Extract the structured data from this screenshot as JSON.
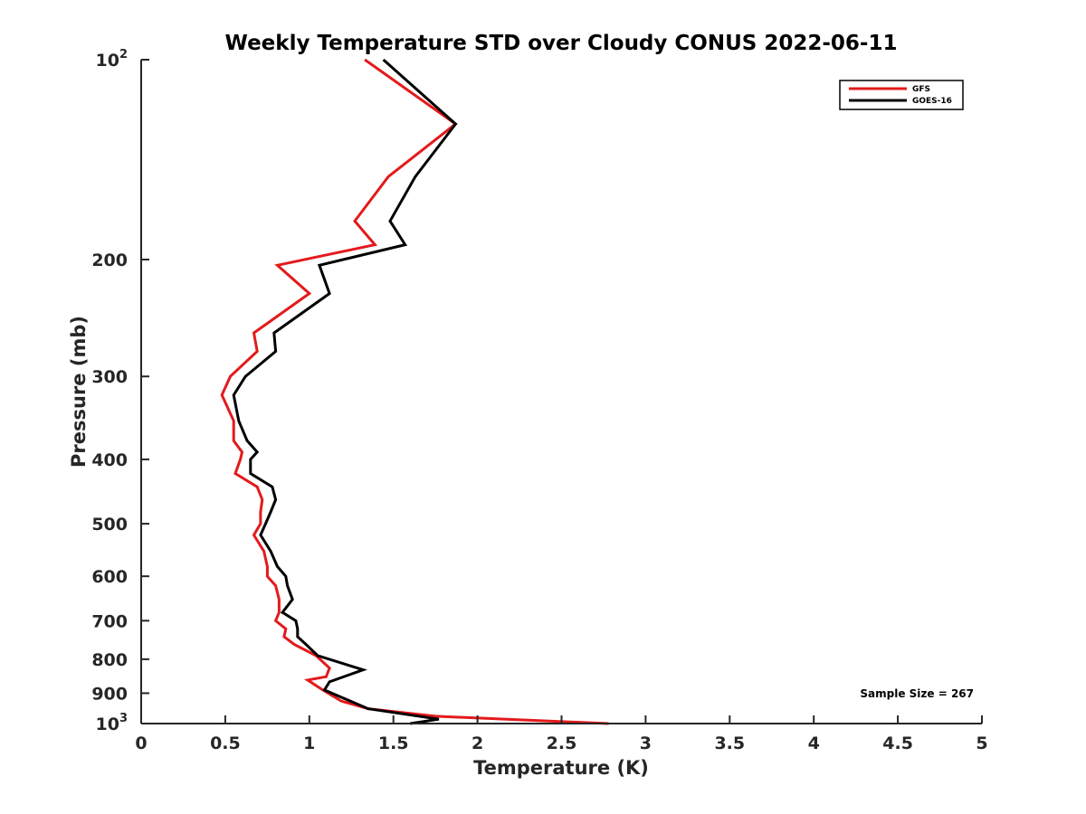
{
  "chart_data": {
    "type": "line",
    "title": "Weekly Temperature STD over Cloudy CONUS 2022-06-11",
    "xlabel": "Temperature (K)",
    "ylabel": "Pressure (mb)",
    "xlim": [
      0,
      5
    ],
    "ylim": [
      100,
      1000
    ],
    "yscale": "log",
    "y_reversed": true,
    "grid": false,
    "legend_position": "top-right",
    "x_ticks": [
      "0",
      "0.5",
      "1",
      "1.5",
      "2",
      "2.5",
      "3",
      "3.5",
      "4",
      "4.5",
      "5"
    ],
    "y_ticks": [
      {
        "value": 100,
        "base": "10",
        "exp": "2"
      },
      {
        "value": 200,
        "text": "200"
      },
      {
        "value": 300,
        "text": "300"
      },
      {
        "value": 400,
        "text": "400"
      },
      {
        "value": 500,
        "text": "500"
      },
      {
        "value": 600,
        "text": "600"
      },
      {
        "value": 700,
        "text": "700"
      },
      {
        "value": 800,
        "text": "800"
      },
      {
        "value": 900,
        "text": "900"
      },
      {
        "value": 1000,
        "base": "10",
        "exp": "3"
      }
    ],
    "annotation": "Sample Size = 267",
    "series": [
      {
        "name": "GFS",
        "color": "#e31a1c",
        "points": [
          [
            1.33,
            100
          ],
          [
            1.87,
            125
          ],
          [
            1.47,
            150
          ],
          [
            1.27,
            175
          ],
          [
            1.39,
            190
          ],
          [
            0.81,
            204
          ],
          [
            1.0,
            225
          ],
          [
            0.67,
            258
          ],
          [
            0.69,
            275
          ],
          [
            0.53,
            300
          ],
          [
            0.48,
            320
          ],
          [
            0.55,
            350
          ],
          [
            0.55,
            375
          ],
          [
            0.6,
            390
          ],
          [
            0.59,
            400
          ],
          [
            0.56,
            420
          ],
          [
            0.69,
            440
          ],
          [
            0.72,
            460
          ],
          [
            0.71,
            480
          ],
          [
            0.71,
            500
          ],
          [
            0.67,
            520
          ],
          [
            0.73,
            550
          ],
          [
            0.75,
            580
          ],
          [
            0.75,
            600
          ],
          [
            0.8,
            620
          ],
          [
            0.82,
            650
          ],
          [
            0.82,
            680
          ],
          [
            0.8,
            700
          ],
          [
            0.86,
            720
          ],
          [
            0.85,
            740
          ],
          [
            0.91,
            760
          ],
          [
            1.04,
            790
          ],
          [
            1.12,
            825
          ],
          [
            1.1,
            850
          ],
          [
            0.99,
            860
          ],
          [
            1.08,
            890
          ],
          [
            1.19,
            925
          ],
          [
            1.35,
            950
          ],
          [
            1.75,
            975
          ],
          [
            2.78,
            1000
          ]
        ]
      },
      {
        "name": "GOES-16",
        "color": "#000000",
        "points": [
          [
            1.44,
            100
          ],
          [
            1.87,
            125
          ],
          [
            1.63,
            150
          ],
          [
            1.48,
            175
          ],
          [
            1.57,
            190
          ],
          [
            1.06,
            204
          ],
          [
            1.12,
            225
          ],
          [
            0.79,
            258
          ],
          [
            0.8,
            275
          ],
          [
            0.62,
            300
          ],
          [
            0.55,
            320
          ],
          [
            0.58,
            350
          ],
          [
            0.63,
            375
          ],
          [
            0.69,
            390
          ],
          [
            0.65,
            400
          ],
          [
            0.65,
            420
          ],
          [
            0.78,
            440
          ],
          [
            0.8,
            460
          ],
          [
            0.77,
            480
          ],
          [
            0.74,
            500
          ],
          [
            0.71,
            520
          ],
          [
            0.77,
            550
          ],
          [
            0.81,
            580
          ],
          [
            0.86,
            600
          ],
          [
            0.87,
            620
          ],
          [
            0.9,
            650
          ],
          [
            0.84,
            680
          ],
          [
            0.92,
            700
          ],
          [
            0.93,
            720
          ],
          [
            0.93,
            740
          ],
          [
            0.98,
            760
          ],
          [
            1.05,
            790
          ],
          [
            1.22,
            815
          ],
          [
            1.32,
            830
          ],
          [
            1.12,
            865
          ],
          [
            1.09,
            890
          ],
          [
            1.35,
            950
          ],
          [
            1.77,
            985
          ],
          [
            1.6,
            1000
          ]
        ]
      }
    ]
  }
}
